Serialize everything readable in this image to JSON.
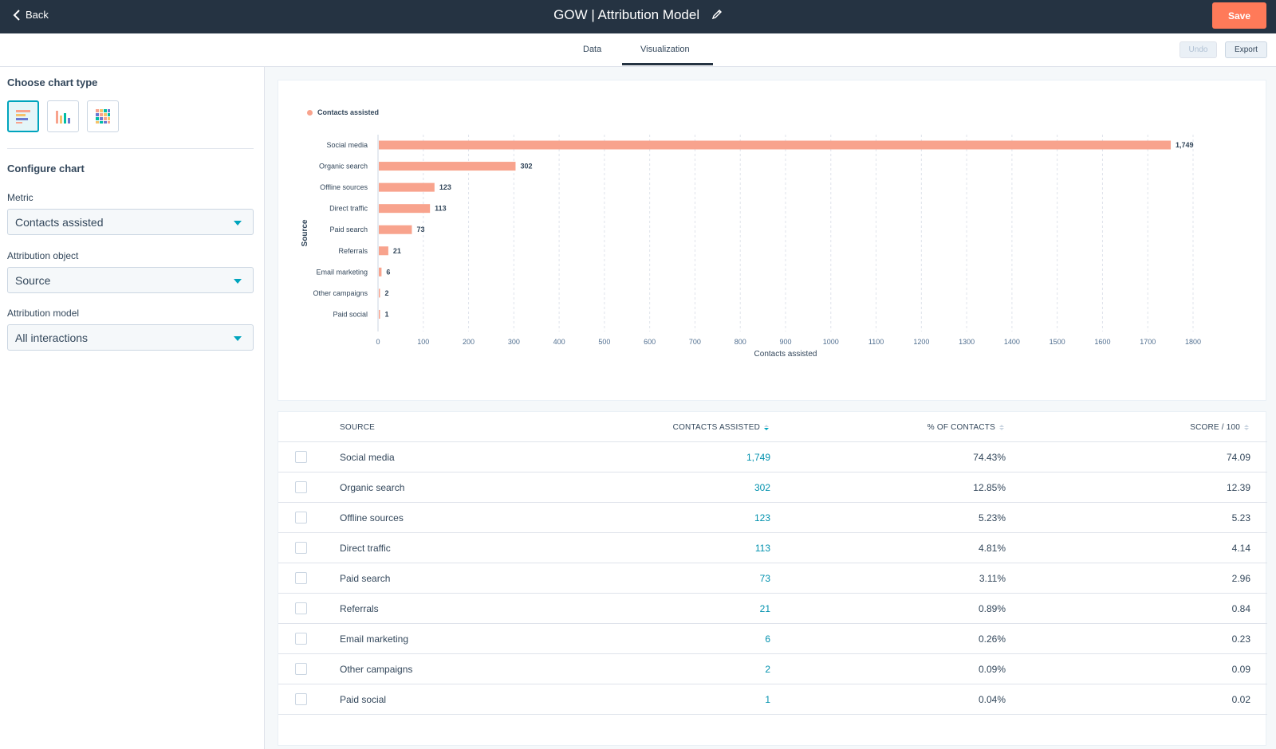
{
  "topbar": {
    "back_label": "Back",
    "title": "GOW | Attribution Model",
    "save_label": "Save"
  },
  "tabs": [
    {
      "label": "Data",
      "active": false
    },
    {
      "label": "Visualization",
      "active": true
    }
  ],
  "toolbar": {
    "undo_label": "Undo",
    "export_label": "Export"
  },
  "sidebar": {
    "chart_type_heading": "Choose chart type",
    "chart_types": [
      {
        "icon": "horizontal-bar-chart-icon",
        "active": true
      },
      {
        "icon": "vertical-bar-chart-icon",
        "active": false
      },
      {
        "icon": "table-grid-icon",
        "active": false
      }
    ],
    "configure_heading": "Configure chart",
    "metric_label": "Metric",
    "metric_value": "Contacts assisted",
    "attribution_object_label": "Attribution object",
    "attribution_object_value": "Source",
    "attribution_model_label": "Attribution model",
    "attribution_model_value": "All interactions"
  },
  "colors": {
    "accent": "#ff7a59",
    "teal": "#00a4bd",
    "bar": "#f8a38d",
    "topbar": "#253342"
  },
  "chart_data": {
    "type": "bar",
    "orientation": "horizontal",
    "legend": [
      "Contacts assisted"
    ],
    "legend_position": "top-left",
    "categories": [
      "Social media",
      "Organic search",
      "Offline sources",
      "Direct traffic",
      "Paid search",
      "Referrals",
      "Email marketing",
      "Other campaigns",
      "Paid social"
    ],
    "series": [
      {
        "name": "Contacts assisted",
        "values": [
          1749,
          302,
          123,
          113,
          73,
          21,
          6,
          2,
          1
        ]
      }
    ],
    "data_labels": [
      "1,749",
      "302",
      "123",
      "113",
      "73",
      "21",
      "6",
      "2",
      "1"
    ],
    "xlabel": "Contacts assisted",
    "ylabel": "Source",
    "xlim": [
      0,
      1800
    ],
    "xticks": [
      0,
      100,
      200,
      300,
      400,
      500,
      600,
      700,
      800,
      900,
      1000,
      1100,
      1200,
      1300,
      1400,
      1500,
      1600,
      1700,
      1800
    ],
    "grid": "vertical-dashed"
  },
  "table": {
    "headers": {
      "source": "SOURCE",
      "contacts_assisted": "CONTACTS ASSISTED",
      "pct_contacts": "% OF CONTACTS",
      "score": "SCORE / 100"
    },
    "rows": [
      {
        "source": "Social media",
        "contacts_assisted": "1,749",
        "pct": "74.43%",
        "score": "74.09"
      },
      {
        "source": "Organic search",
        "contacts_assisted": "302",
        "pct": "12.85%",
        "score": "12.39"
      },
      {
        "source": "Offline sources",
        "contacts_assisted": "123",
        "pct": "5.23%",
        "score": "5.23"
      },
      {
        "source": "Direct traffic",
        "contacts_assisted": "113",
        "pct": "4.81%",
        "score": "4.14"
      },
      {
        "source": "Paid search",
        "contacts_assisted": "73",
        "pct": "3.11%",
        "score": "2.96"
      },
      {
        "source": "Referrals",
        "contacts_assisted": "21",
        "pct": "0.89%",
        "score": "0.84"
      },
      {
        "source": "Email marketing",
        "contacts_assisted": "6",
        "pct": "0.26%",
        "score": "0.23"
      },
      {
        "source": "Other campaigns",
        "contacts_assisted": "2",
        "pct": "0.09%",
        "score": "0.09"
      },
      {
        "source": "Paid social",
        "contacts_assisted": "1",
        "pct": "0.04%",
        "score": "0.02"
      }
    ]
  }
}
